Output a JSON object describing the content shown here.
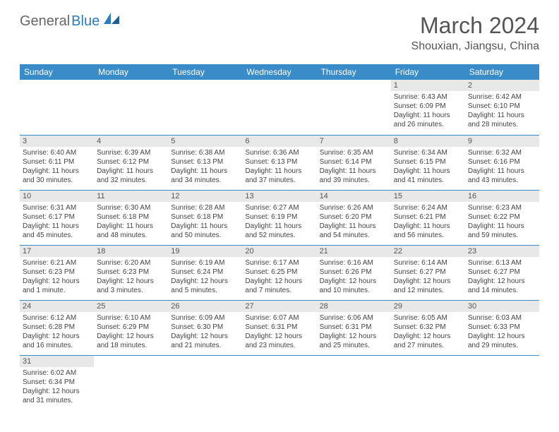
{
  "logo": {
    "text1": "General",
    "text2": "Blue"
  },
  "title": "March 2024",
  "location": "Shouxian, Jiangsu, China",
  "colors": {
    "header_bg": "#3a8cc9",
    "header_text": "#ffffff",
    "daynum_bg": "#e8e8e8",
    "border": "#3a8cc9",
    "logo_blue": "#2b7bbf",
    "text": "#444444"
  },
  "day_headers": [
    "Sunday",
    "Monday",
    "Tuesday",
    "Wednesday",
    "Thursday",
    "Friday",
    "Saturday"
  ],
  "weeks": [
    [
      null,
      null,
      null,
      null,
      null,
      {
        "n": "1",
        "sr": "Sunrise: 6:43 AM",
        "ss": "Sunset: 6:09 PM",
        "dl": "Daylight: 11 hours and 26 minutes."
      },
      {
        "n": "2",
        "sr": "Sunrise: 6:42 AM",
        "ss": "Sunset: 6:10 PM",
        "dl": "Daylight: 11 hours and 28 minutes."
      }
    ],
    [
      {
        "n": "3",
        "sr": "Sunrise: 6:40 AM",
        "ss": "Sunset: 6:11 PM",
        "dl": "Daylight: 11 hours and 30 minutes."
      },
      {
        "n": "4",
        "sr": "Sunrise: 6:39 AM",
        "ss": "Sunset: 6:12 PM",
        "dl": "Daylight: 11 hours and 32 minutes."
      },
      {
        "n": "5",
        "sr": "Sunrise: 6:38 AM",
        "ss": "Sunset: 6:13 PM",
        "dl": "Daylight: 11 hours and 34 minutes."
      },
      {
        "n": "6",
        "sr": "Sunrise: 6:36 AM",
        "ss": "Sunset: 6:13 PM",
        "dl": "Daylight: 11 hours and 37 minutes."
      },
      {
        "n": "7",
        "sr": "Sunrise: 6:35 AM",
        "ss": "Sunset: 6:14 PM",
        "dl": "Daylight: 11 hours and 39 minutes."
      },
      {
        "n": "8",
        "sr": "Sunrise: 6:34 AM",
        "ss": "Sunset: 6:15 PM",
        "dl": "Daylight: 11 hours and 41 minutes."
      },
      {
        "n": "9",
        "sr": "Sunrise: 6:32 AM",
        "ss": "Sunset: 6:16 PM",
        "dl": "Daylight: 11 hours and 43 minutes."
      }
    ],
    [
      {
        "n": "10",
        "sr": "Sunrise: 6:31 AM",
        "ss": "Sunset: 6:17 PM",
        "dl": "Daylight: 11 hours and 45 minutes."
      },
      {
        "n": "11",
        "sr": "Sunrise: 6:30 AM",
        "ss": "Sunset: 6:18 PM",
        "dl": "Daylight: 11 hours and 48 minutes."
      },
      {
        "n": "12",
        "sr": "Sunrise: 6:28 AM",
        "ss": "Sunset: 6:18 PM",
        "dl": "Daylight: 11 hours and 50 minutes."
      },
      {
        "n": "13",
        "sr": "Sunrise: 6:27 AM",
        "ss": "Sunset: 6:19 PM",
        "dl": "Daylight: 11 hours and 52 minutes."
      },
      {
        "n": "14",
        "sr": "Sunrise: 6:26 AM",
        "ss": "Sunset: 6:20 PM",
        "dl": "Daylight: 11 hours and 54 minutes."
      },
      {
        "n": "15",
        "sr": "Sunrise: 6:24 AM",
        "ss": "Sunset: 6:21 PM",
        "dl": "Daylight: 11 hours and 56 minutes."
      },
      {
        "n": "16",
        "sr": "Sunrise: 6:23 AM",
        "ss": "Sunset: 6:22 PM",
        "dl": "Daylight: 11 hours and 59 minutes."
      }
    ],
    [
      {
        "n": "17",
        "sr": "Sunrise: 6:21 AM",
        "ss": "Sunset: 6:23 PM",
        "dl": "Daylight: 12 hours and 1 minute."
      },
      {
        "n": "18",
        "sr": "Sunrise: 6:20 AM",
        "ss": "Sunset: 6:23 PM",
        "dl": "Daylight: 12 hours and 3 minutes."
      },
      {
        "n": "19",
        "sr": "Sunrise: 6:19 AM",
        "ss": "Sunset: 6:24 PM",
        "dl": "Daylight: 12 hours and 5 minutes."
      },
      {
        "n": "20",
        "sr": "Sunrise: 6:17 AM",
        "ss": "Sunset: 6:25 PM",
        "dl": "Daylight: 12 hours and 7 minutes."
      },
      {
        "n": "21",
        "sr": "Sunrise: 6:16 AM",
        "ss": "Sunset: 6:26 PM",
        "dl": "Daylight: 12 hours and 10 minutes."
      },
      {
        "n": "22",
        "sr": "Sunrise: 6:14 AM",
        "ss": "Sunset: 6:27 PM",
        "dl": "Daylight: 12 hours and 12 minutes."
      },
      {
        "n": "23",
        "sr": "Sunrise: 6:13 AM",
        "ss": "Sunset: 6:27 PM",
        "dl": "Daylight: 12 hours and 14 minutes."
      }
    ],
    [
      {
        "n": "24",
        "sr": "Sunrise: 6:12 AM",
        "ss": "Sunset: 6:28 PM",
        "dl": "Daylight: 12 hours and 16 minutes."
      },
      {
        "n": "25",
        "sr": "Sunrise: 6:10 AM",
        "ss": "Sunset: 6:29 PM",
        "dl": "Daylight: 12 hours and 18 minutes."
      },
      {
        "n": "26",
        "sr": "Sunrise: 6:09 AM",
        "ss": "Sunset: 6:30 PM",
        "dl": "Daylight: 12 hours and 21 minutes."
      },
      {
        "n": "27",
        "sr": "Sunrise: 6:07 AM",
        "ss": "Sunset: 6:31 PM",
        "dl": "Daylight: 12 hours and 23 minutes."
      },
      {
        "n": "28",
        "sr": "Sunrise: 6:06 AM",
        "ss": "Sunset: 6:31 PM",
        "dl": "Daylight: 12 hours and 25 minutes."
      },
      {
        "n": "29",
        "sr": "Sunrise: 6:05 AM",
        "ss": "Sunset: 6:32 PM",
        "dl": "Daylight: 12 hours and 27 minutes."
      },
      {
        "n": "30",
        "sr": "Sunrise: 6:03 AM",
        "ss": "Sunset: 6:33 PM",
        "dl": "Daylight: 12 hours and 29 minutes."
      }
    ],
    [
      {
        "n": "31",
        "sr": "Sunrise: 6:02 AM",
        "ss": "Sunset: 6:34 PM",
        "dl": "Daylight: 12 hours and 31 minutes."
      },
      null,
      null,
      null,
      null,
      null,
      null
    ]
  ]
}
